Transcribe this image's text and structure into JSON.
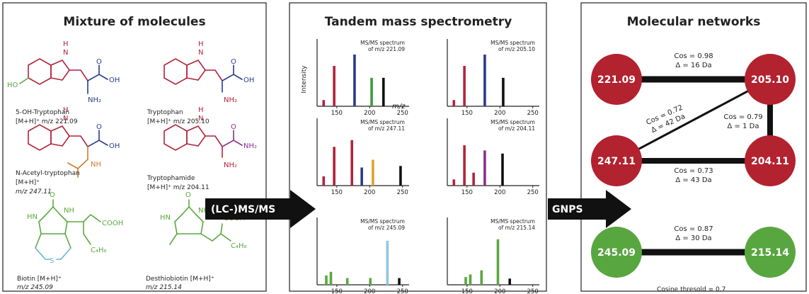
{
  "panels": {
    "mixture": {
      "title": "Mixture of molecules"
    },
    "tandem": {
      "title": "Tandem mass spectrometry"
    },
    "networks": {
      "title": "Molecular networks"
    }
  },
  "molecules": [
    {
      "name": "5-OH-Tryptophan",
      "line2": "[M+H]⁺ m/z 221.09",
      "color": "#b0243a"
    },
    {
      "name": "Tryptophan",
      "line2": "[M+H]⁺ m/z 205.10",
      "color": "#b0243a"
    },
    {
      "name": "N-Acetyl-tryptophan",
      "line2": "[M+H]⁺",
      "line3": "m/z 247.11",
      "color": "#b0243a"
    },
    {
      "name": "Tryptophamide",
      "line2": "[M+H]⁺ m/z 204.11",
      "color": "#b0243a"
    },
    {
      "name": "Biotin [M+H]⁺",
      "line2": "m/z 245.09",
      "color": "#5aa83e"
    },
    {
      "name": "Desthiobiotin [M+H]⁺",
      "line2": "m/z 215.14",
      "color": "#5aa83e"
    }
  ],
  "atom_labels": {
    "H": "H",
    "N": "N",
    "HO": "HO",
    "O": "O",
    "OH": "OH",
    "NH2": "NH₂",
    "NH": "NH",
    "HN": "HN",
    "S": "S",
    "COOH": "COOH",
    "C4H8": "C₄H₈"
  },
  "arrows": {
    "lcms": "(LC-)MS/MS",
    "gnps": "GNPS"
  },
  "axis": {
    "ylabel": "Intensity",
    "xlabel": "m/z"
  },
  "chart_data": [
    {
      "type": "bar",
      "title": "MS/MS spectrum",
      "subtitle": "of m/z 221.09",
      "xticks": [
        150,
        200,
        250
      ],
      "xlim": [
        120,
        260
      ],
      "peaks": [
        {
          "mz": 130,
          "i": 0.12,
          "color": "#b0243a"
        },
        {
          "mz": 146,
          "i": 0.78,
          "color": "#b0243a"
        },
        {
          "mz": 177,
          "i": 1.0,
          "color": "#2b3a8c"
        },
        {
          "mz": 203,
          "i": 0.55,
          "color": "#3c9a3c"
        },
        {
          "mz": 221,
          "i": 0.55,
          "color": "#111111"
        }
      ]
    },
    {
      "type": "bar",
      "title": "MS/MS spectrum",
      "subtitle": "of m/z 205.10",
      "xticks": [
        150,
        200,
        250
      ],
      "xlim": [
        120,
        260
      ],
      "peaks": [
        {
          "mz": 130,
          "i": 0.12,
          "color": "#b0243a"
        },
        {
          "mz": 146,
          "i": 0.78,
          "color": "#b0243a"
        },
        {
          "mz": 177,
          "i": 1.0,
          "color": "#2b3a8c"
        },
        {
          "mz": 205,
          "i": 0.55,
          "color": "#111111"
        }
      ]
    },
    {
      "type": "bar",
      "title": "MS/MS spectrum",
      "subtitle": "of m/z 247.11",
      "xticks": [
        150,
        200,
        250
      ],
      "xlim": [
        120,
        260
      ],
      "peaks": [
        {
          "mz": 130,
          "i": 0.18,
          "color": "#b0243a"
        },
        {
          "mz": 146,
          "i": 0.75,
          "color": "#b0243a"
        },
        {
          "mz": 173,
          "i": 0.88,
          "color": "#b0243a"
        },
        {
          "mz": 188,
          "i": 0.35,
          "color": "#2b3a8c"
        },
        {
          "mz": 205,
          "i": 0.5,
          "color": "#d9a52a"
        },
        {
          "mz": 247,
          "i": 0.38,
          "color": "#111111"
        }
      ]
    },
    {
      "type": "bar",
      "title": "MS/MS spectrum",
      "subtitle": "of m/z 204.11",
      "xticks": [
        150,
        200,
        250
      ],
      "xlim": [
        120,
        260
      ],
      "peaks": [
        {
          "mz": 130,
          "i": 0.12,
          "color": "#b0243a"
        },
        {
          "mz": 146,
          "i": 0.78,
          "color": "#b0243a"
        },
        {
          "mz": 160,
          "i": 0.25,
          "color": "#b0243a"
        },
        {
          "mz": 177,
          "i": 0.68,
          "color": "#8a2f8a"
        },
        {
          "mz": 204,
          "i": 0.62,
          "color": "#111111"
        }
      ]
    },
    {
      "type": "bar",
      "title": "MS/MS spectrum",
      "subtitle": "of m/z 245.09",
      "xticks": [
        150,
        200,
        250
      ],
      "xlim": [
        120,
        260
      ],
      "peaks": [
        {
          "mz": 134,
          "i": 0.18,
          "color": "#5aa83e"
        },
        {
          "mz": 141,
          "i": 0.25,
          "color": "#5aa83e"
        },
        {
          "mz": 166,
          "i": 0.13,
          "color": "#5aa83e"
        },
        {
          "mz": 201,
          "i": 0.13,
          "color": "#5aa83e"
        },
        {
          "mz": 227,
          "i": 0.85,
          "color": "#8fc6e3"
        },
        {
          "mz": 245,
          "i": 0.13,
          "color": "#111111"
        }
      ]
    },
    {
      "type": "bar",
      "title": "MS/MS spectrum",
      "subtitle": "of m/z 215.14",
      "xticks": [
        150,
        200,
        250
      ],
      "xlim": [
        120,
        260
      ],
      "peaks": [
        {
          "mz": 148,
          "i": 0.15,
          "color": "#5aa83e"
        },
        {
          "mz": 155,
          "i": 0.2,
          "color": "#5aa83e"
        },
        {
          "mz": 172,
          "i": 0.28,
          "color": "#5aa83e"
        },
        {
          "mz": 197,
          "i": 0.88,
          "color": "#5aa83e"
        },
        {
          "mz": 215,
          "i": 0.12,
          "color": "#111111"
        }
      ]
    }
  ],
  "network": {
    "nodes": [
      {
        "id": "n1",
        "label": "221.09",
        "color": "#b3222f"
      },
      {
        "id": "n2",
        "label": "205.10",
        "color": "#b3222f"
      },
      {
        "id": "n3",
        "label": "247.11",
        "color": "#b3222f"
      },
      {
        "id": "n4",
        "label": "204.11",
        "color": "#b3222f"
      },
      {
        "id": "n5",
        "label": "245.09",
        "color": "#58a63f"
      },
      {
        "id": "n6",
        "label": "215.14",
        "color": "#58a63f"
      }
    ],
    "edges": [
      {
        "from": "n1",
        "to": "n2",
        "cos": "Cos = 0.98",
        "delta": "Δ = 16 Da"
      },
      {
        "from": "n3",
        "to": "n2",
        "cos": "Cos = 0.72",
        "delta": "Δ = 42 Da"
      },
      {
        "from": "n2",
        "to": "n4",
        "cos": "Cos = 0.79",
        "delta": "Δ = 1 Da"
      },
      {
        "from": "n3",
        "to": "n4",
        "cos": "Cos = 0.73",
        "delta": "Δ = 43 Da"
      },
      {
        "from": "n5",
        "to": "n6",
        "cos": "Cos = 0.87",
        "delta": "Δ = 30 Da"
      }
    ],
    "threshold": "Cosine thresold = 0.7"
  }
}
